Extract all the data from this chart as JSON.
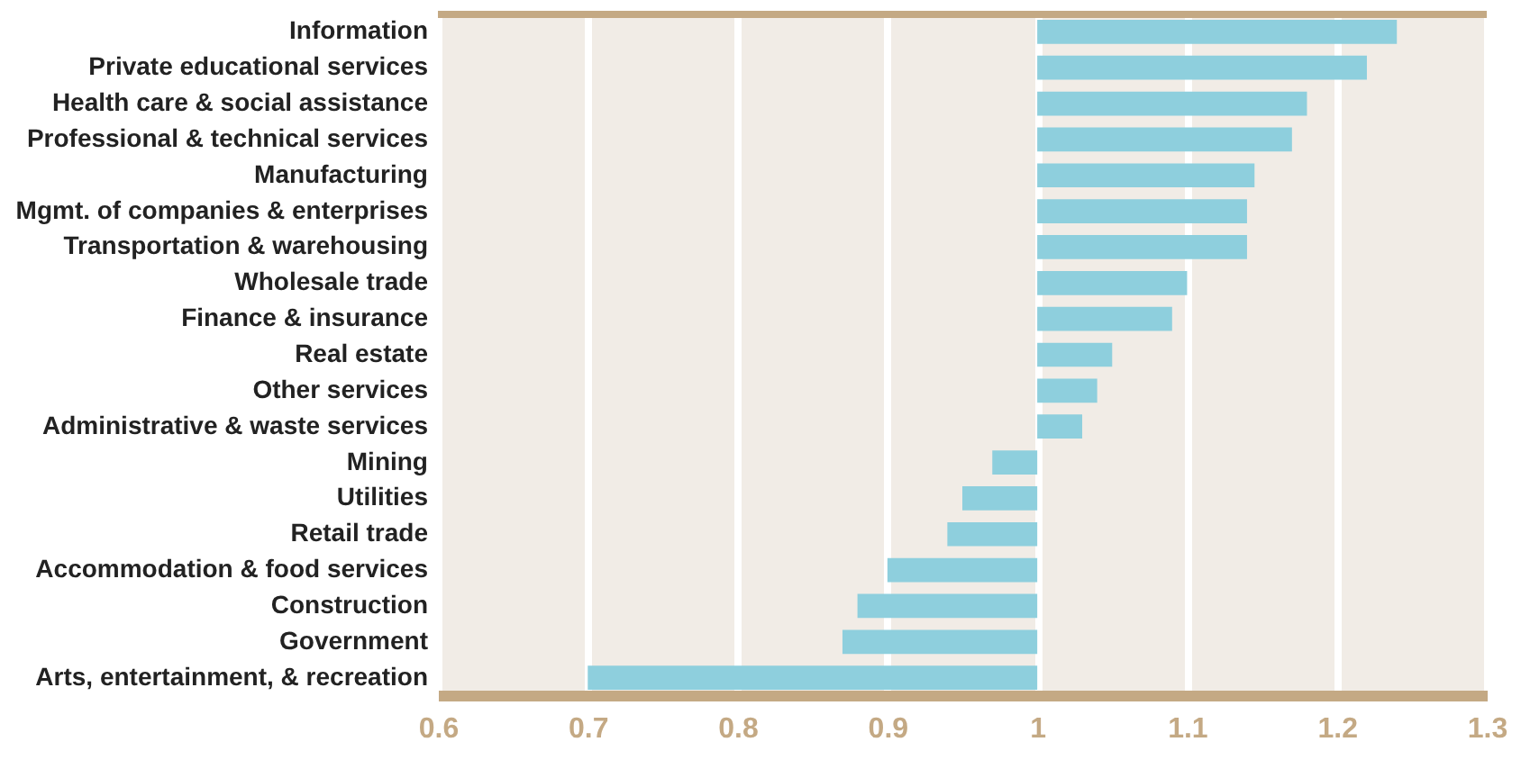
{
  "chart_data": {
    "type": "bar",
    "orientation": "horizontal",
    "categories": [
      "Information",
      "Private educational services",
      "Health care & social assistance",
      "Professional & technical services",
      "Manufacturing",
      "Mgmt. of companies & enterprises",
      "Transportation & warehousing",
      "Wholesale trade",
      "Finance & insurance",
      "Real estate",
      "Other services",
      "Administrative & waste services",
      "Mining",
      "Utilities",
      "Retail trade",
      "Accommodation & food services",
      "Construction",
      "Government",
      "Arts, entertainment, & recreation"
    ],
    "base": [
      1,
      1,
      1,
      1,
      1,
      1,
      1,
      1,
      1,
      1,
      1,
      1,
      1,
      1,
      1,
      1,
      1,
      1,
      1
    ],
    "values": [
      0.24,
      0.22,
      0.18,
      0.17,
      0.145,
      0.14,
      0.14,
      0.1,
      0.09,
      0.05,
      0.04,
      0.03,
      -0.03,
      -0.05,
      -0.06,
      -0.1,
      -0.12,
      -0.13,
      -0.3
    ],
    "color": "#8ecfdd",
    "xlim": [
      0.6,
      1.3
    ],
    "xticks": [
      0.6,
      0.7,
      0.8,
      0.9,
      1,
      1.1,
      1.2,
      1.3
    ],
    "grid": "x"
  }
}
